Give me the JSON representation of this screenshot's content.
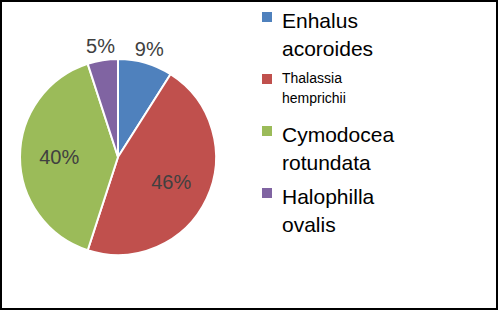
{
  "chart_data": {
    "type": "pie",
    "categories": [
      "Enhalus acoroides",
      "Thalassia hemprichii",
      "Cymodocea rotundata",
      "Halophilla ovalis"
    ],
    "values": [
      9,
      46,
      40,
      5
    ],
    "value_labels": [
      "9%",
      "46%",
      "40%",
      "5%"
    ],
    "colors": [
      "#4f81bd",
      "#c0504d",
      "#9bbb59",
      "#8064a2"
    ],
    "data_labels": true,
    "legend": "right"
  }
}
